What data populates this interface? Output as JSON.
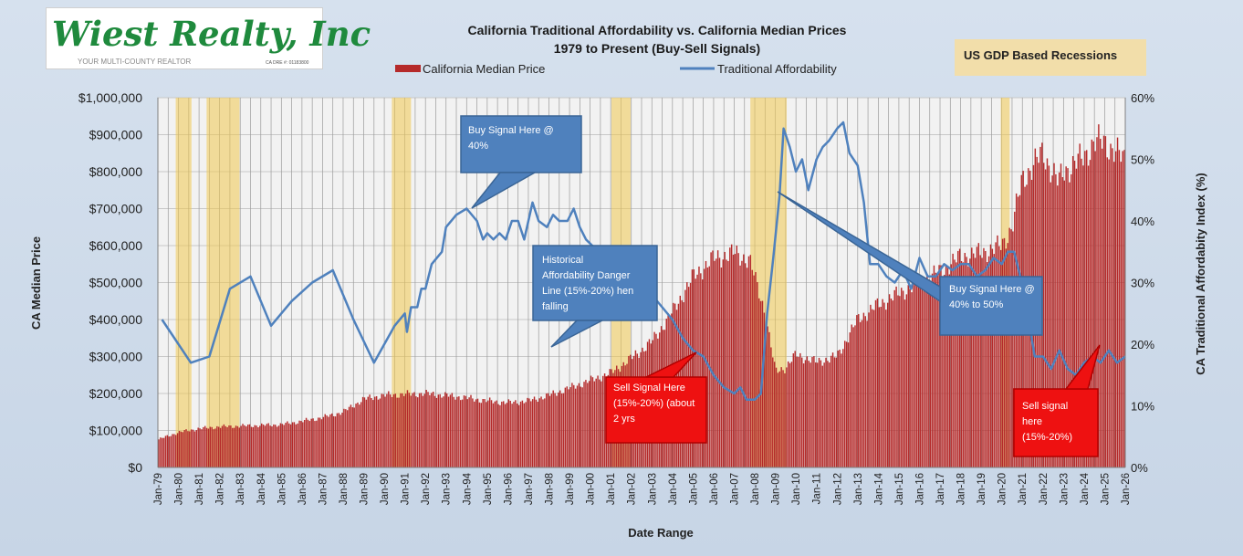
{
  "logo": {
    "brand": "Wiest Realty, Inc",
    "tagline": "YOUR MULTI-COUNTY REALTOR",
    "dre": "CA DRE #: 01183800"
  },
  "titles": {
    "line1": "California Traditional Affordability  vs. California Median Prices",
    "line2": "1979 to Present (Buy-Sell Signals)"
  },
  "legend": {
    "price": "California Median Price",
    "afford": "Traditional Affordability",
    "recession": "US GDP Based Recessions"
  },
  "axes": {
    "left_label": "CA Median Price",
    "right_label": "CA Traditional Affordabity Index (%)",
    "x_label": "Date Range",
    "left_ticks": [
      "$0",
      "$100,000",
      "$200,000",
      "$300,000",
      "$400,000",
      "$500,000",
      "$600,000",
      "$700,000",
      "$800,000",
      "$900,000",
      "$1,000,000"
    ],
    "right_ticks": [
      "0%",
      "10%",
      "20%",
      "30%",
      "40%",
      "50%",
      "60%"
    ],
    "x_ticks": [
      "Jan-79",
      "Jan-80",
      "Jan-81",
      "Jan-82",
      "Jan-83",
      "Jan-84",
      "Jan-85",
      "Jan-86",
      "Jan-87",
      "Jan-88",
      "Jan-89",
      "Jan-90",
      "Jan-91",
      "Jan-92",
      "Jan-93",
      "Jan-94",
      "Jan-95",
      "Jan-96",
      "Jan-97",
      "Jan-98",
      "Jan-99",
      "Jan-00",
      "Jan-01",
      "Jan-02",
      "Jan-03",
      "Jan-04",
      "Jan-05",
      "Jan-06",
      "Jan-07",
      "Jan-08",
      "Jan-09",
      "Jan-10",
      "Jan-11",
      "Jan-12",
      "Jan-13",
      "Jan-14",
      "Jan-15",
      "Jan-16",
      "Jan-17",
      "Jan-18",
      "Jan-19",
      "Jan-20",
      "Jan-21",
      "Jan-22",
      "Jan-23",
      "Jan-24",
      "Jan-25",
      "Jan-26"
    ]
  },
  "callouts": {
    "buy1": "Buy Signal Here @ 40%",
    "danger": "Historical Affordability Danger Line (15%-20%) hen falling",
    "sell1": "Sell Signal Here (15%-20%) (about 2 yrs",
    "buy2": "Buy Signal Here @ 40% to 50%",
    "sell2": "Sell signal here (15%-20%)"
  },
  "colors": {
    "bar": "#b52a2a",
    "line": "#4f81bd",
    "recession": "#f0c850",
    "callout_blue": "#4f81bd",
    "callout_red": "#ee1111"
  },
  "chart_data": {
    "type": "bar+line",
    "x_range": [
      "1979-01",
      "2026-01"
    ],
    "ylim_left": [
      0,
      1000000
    ],
    "ylim_right": [
      0,
      60
    ],
    "recessions": [
      [
        "1980-01",
        "1980-07"
      ],
      [
        "1981-07",
        "1982-11"
      ],
      [
        "1990-07",
        "1991-03"
      ],
      [
        "2001-03",
        "2001-11"
      ],
      [
        "2007-12",
        "2009-06"
      ],
      [
        "2020-02",
        "2020-04"
      ]
    ],
    "median_price": {
      "name": "California Median Price",
      "points": [
        [
          1979.0,
          75000
        ],
        [
          1980.0,
          95000
        ],
        [
          1981.0,
          105000
        ],
        [
          1982.0,
          110000
        ],
        [
          1983.0,
          112000
        ],
        [
          1984.0,
          114000
        ],
        [
          1985.0,
          116000
        ],
        [
          1986.0,
          125000
        ],
        [
          1987.0,
          135000
        ],
        [
          1988.0,
          150000
        ],
        [
          1989.0,
          185000
        ],
        [
          1990.0,
          195000
        ],
        [
          1991.0,
          198000
        ],
        [
          1992.0,
          200000
        ],
        [
          1993.0,
          195000
        ],
        [
          1994.0,
          188000
        ],
        [
          1995.0,
          180000
        ],
        [
          1996.0,
          175000
        ],
        [
          1997.0,
          180000
        ],
        [
          1998.0,
          195000
        ],
        [
          1999.0,
          215000
        ],
        [
          2000.0,
          235000
        ],
        [
          2001.0,
          255000
        ],
        [
          2002.0,
          295000
        ],
        [
          2003.0,
          340000
        ],
        [
          2004.0,
          420000
        ],
        [
          2005.0,
          515000
        ],
        [
          2006.0,
          565000
        ],
        [
          2007.0,
          580000
        ],
        [
          2007.75,
          560000
        ],
        [
          2008.5,
          420000
        ],
        [
          2009.0,
          260000
        ],
        [
          2009.5,
          270000
        ],
        [
          2010.0,
          305000
        ],
        [
          2011.0,
          285000
        ],
        [
          2012.0,
          300000
        ],
        [
          2013.0,
          400000
        ],
        [
          2014.0,
          440000
        ],
        [
          2015.0,
          470000
        ],
        [
          2016.0,
          500000
        ],
        [
          2017.0,
          530000
        ],
        [
          2018.0,
          570000
        ],
        [
          2019.0,
          580000
        ],
        [
          2020.0,
          600000
        ],
        [
          2020.5,
          650000
        ],
        [
          2021.0,
          780000
        ],
        [
          2022.0,
          850000
        ],
        [
          2022.75,
          770000
        ],
        [
          2023.0,
          800000
        ],
        [
          2024.0,
          840000
        ],
        [
          2024.5,
          880000
        ],
        [
          2025.0,
          880000
        ],
        [
          2026.0,
          830000
        ]
      ]
    },
    "affordability": {
      "name": "Traditional Affordability",
      "points": [
        [
          1979.2,
          24
        ],
        [
          1980.6,
          17
        ],
        [
          1981.5,
          18
        ],
        [
          1982.5,
          29
        ],
        [
          1983.5,
          31
        ],
        [
          1984.5,
          23
        ],
        [
          1985.5,
          27
        ],
        [
          1986.5,
          30
        ],
        [
          1987.5,
          32
        ],
        [
          1988.5,
          24
        ],
        [
          1989.5,
          17
        ],
        [
          1990.5,
          23
        ],
        [
          1991.0,
          25
        ],
        [
          1991.1,
          22
        ],
        [
          1991.3,
          26
        ],
        [
          1991.6,
          26
        ],
        [
          1991.8,
          29
        ],
        [
          1992.0,
          29
        ],
        [
          1992.3,
          33
        ],
        [
          1992.8,
          35
        ],
        [
          1993.0,
          39
        ],
        [
          1993.5,
          41
        ],
        [
          1994.0,
          42
        ],
        [
          1994.5,
          40
        ],
        [
          1994.8,
          37
        ],
        [
          1995.0,
          38
        ],
        [
          1995.3,
          37
        ],
        [
          1995.6,
          38
        ],
        [
          1995.9,
          37
        ],
        [
          1996.2,
          40
        ],
        [
          1996.5,
          40
        ],
        [
          1996.8,
          37
        ],
        [
          1997.2,
          43
        ],
        [
          1997.5,
          40
        ],
        [
          1997.9,
          39
        ],
        [
          1998.2,
          41
        ],
        [
          1998.5,
          40
        ],
        [
          1998.9,
          40
        ],
        [
          1999.2,
          42
        ],
        [
          1999.5,
          39
        ],
        [
          1999.8,
          37
        ],
        [
          2000.1,
          36
        ],
        [
          2000.5,
          35
        ],
        [
          2001.0,
          33
        ],
        [
          2001.5,
          33
        ],
        [
          2002.0,
          30
        ],
        [
          2002.5,
          30
        ],
        [
          2003.0,
          28
        ],
        [
          2003.5,
          26
        ],
        [
          2004.0,
          24
        ],
        [
          2004.5,
          21
        ],
        [
          2005.0,
          19
        ],
        [
          2005.5,
          18
        ],
        [
          2006.0,
          15
        ],
        [
          2006.5,
          13
        ],
        [
          2007.0,
          12
        ],
        [
          2007.3,
          13
        ],
        [
          2007.6,
          11
        ],
        [
          2008.0,
          11
        ],
        [
          2008.3,
          12
        ],
        [
          2008.6,
          25
        ],
        [
          2008.9,
          34
        ],
        [
          2009.2,
          44
        ],
        [
          2009.4,
          55
        ],
        [
          2009.7,
          52
        ],
        [
          2010.0,
          48
        ],
        [
          2010.3,
          50
        ],
        [
          2010.6,
          45
        ],
        [
          2011.0,
          50
        ],
        [
          2011.3,
          52
        ],
        [
          2011.6,
          53
        ],
        [
          2012.0,
          55
        ],
        [
          2012.3,
          56
        ],
        [
          2012.6,
          51
        ],
        [
          2013.0,
          49
        ],
        [
          2013.3,
          43
        ],
        [
          2013.6,
          33
        ],
        [
          2014.0,
          33
        ],
        [
          2014.4,
          31
        ],
        [
          2014.8,
          30
        ],
        [
          2015.2,
          32
        ],
        [
          2015.6,
          29
        ],
        [
          2016.0,
          34
        ],
        [
          2016.4,
          31
        ],
        [
          2016.8,
          31
        ],
        [
          2017.2,
          33
        ],
        [
          2017.6,
          32
        ],
        [
          2018.0,
          33
        ],
        [
          2018.4,
          33
        ],
        [
          2018.8,
          31
        ],
        [
          2019.2,
          32
        ],
        [
          2019.6,
          34
        ],
        [
          2020.0,
          33
        ],
        [
          2020.3,
          35
        ],
        [
          2020.6,
          35
        ],
        [
          2020.9,
          31
        ],
        [
          2021.2,
          26
        ],
        [
          2021.6,
          18
        ],
        [
          2022.0,
          18
        ],
        [
          2022.4,
          16
        ],
        [
          2022.8,
          19
        ],
        [
          2023.2,
          16
        ],
        [
          2023.6,
          15
        ],
        [
          2024.0,
          17
        ],
        [
          2024.4,
          18
        ],
        [
          2024.8,
          17
        ],
        [
          2025.2,
          19
        ],
        [
          2025.6,
          17
        ],
        [
          2026.0,
          18
        ]
      ]
    }
  }
}
